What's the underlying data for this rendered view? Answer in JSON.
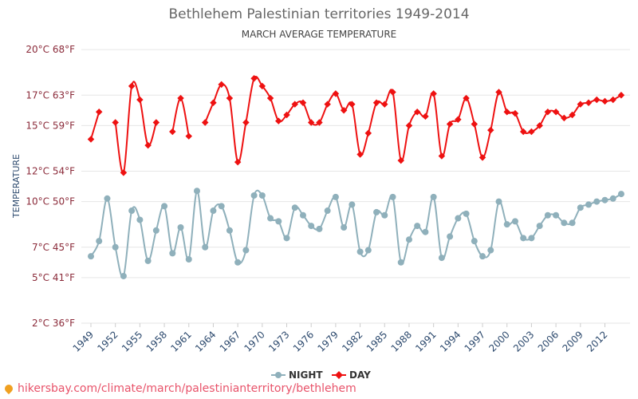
{
  "header": {
    "title": "Bethlehem Palestinian territories 1949-2014",
    "subtitle": "MARCH AVERAGE TEMPERATURE"
  },
  "footer": {
    "url": "hikersbay.com/climate/march/palestinianterritory/bethlehem"
  },
  "colors": {
    "night": "#8fb0bb",
    "day": "#ee1111",
    "grid": "#e6e6e6",
    "ytick": "#8b2b3a",
    "xtick": "#2d4a6e"
  },
  "chart_data": {
    "type": "line",
    "title": "Bethlehem Palestinian territories 1949-2014",
    "subtitle": "MARCH AVERAGE TEMPERATURE",
    "ylabel": "TEMPERATURE",
    "ylim": [
      2,
      20
    ],
    "xlim": [
      1949,
      2014
    ],
    "yticks": [
      {
        "value": 2,
        "label": "2°C 36°F"
      },
      {
        "value": 5,
        "label": "5°C 41°F"
      },
      {
        "value": 7,
        "label": "7°C 45°F"
      },
      {
        "value": 10,
        "label": "10°C 50°F"
      },
      {
        "value": 12,
        "label": "12°C 54°F"
      },
      {
        "value": 15,
        "label": "15°C 59°F"
      },
      {
        "value": 17,
        "label": "17°C 63°F"
      },
      {
        "value": 20,
        "label": "20°C 68°F"
      }
    ],
    "xticks": [
      1949,
      1952,
      1955,
      1958,
      1961,
      1964,
      1967,
      1970,
      1973,
      1976,
      1979,
      1982,
      1985,
      1988,
      1991,
      1994,
      1997,
      2000,
      2003,
      2006,
      2009,
      2012
    ],
    "legend_position": "bottom",
    "grid": true,
    "series": [
      {
        "name": "NIGHT",
        "x": [
          1949,
          1950,
          1951,
          1952,
          1953,
          1954,
          1955,
          1956,
          1957,
          1958,
          1959,
          1960,
          1961,
          1962,
          1963,
          1964,
          1965,
          1966,
          1967,
          1968,
          1969,
          1970,
          1971,
          1972,
          1973,
          1974,
          1975,
          1976,
          1977,
          1978,
          1979,
          1980,
          1981,
          1982,
          1983,
          1984,
          1985,
          1986,
          1987,
          1988,
          1989,
          1990,
          1991,
          1992,
          1993,
          1994,
          1995,
          1996,
          1997,
          1998,
          1999,
          2000,
          2001,
          2002,
          2003,
          2004,
          2005,
          2006,
          2007,
          2008,
          2009,
          2010,
          2011,
          2012,
          2013,
          2014
        ],
        "values": [
          6.4,
          7.4,
          10.2,
          7.0,
          5.1,
          9.4,
          8.8,
          6.1,
          8.1,
          9.7,
          6.6,
          8.3,
          6.2,
          10.7,
          7.0,
          9.4,
          9.7,
          8.1,
          6.0,
          6.8,
          10.4,
          10.4,
          8.9,
          8.7,
          7.6,
          9.6,
          9.1,
          8.4,
          8.2,
          9.4,
          10.3,
          8.3,
          9.8,
          6.7,
          6.8,
          9.3,
          9.1,
          10.3,
          6.0,
          7.5,
          8.4,
          8.0,
          10.3,
          6.3,
          7.7,
          8.9,
          9.2,
          7.4,
          6.4,
          6.8,
          10.0,
          8.5,
          8.7,
          7.6,
          7.6,
          8.4,
          9.1,
          9.1,
          8.6,
          8.6,
          9.6,
          9.8,
          10.0,
          10.1,
          10.2,
          10.5
        ]
      },
      {
        "name": "DAY",
        "x": [
          1949,
          1950,
          1952,
          1953,
          1954,
          1955,
          1956,
          1957,
          1959,
          1960,
          1961,
          1963,
          1964,
          1965,
          1966,
          1967,
          1968,
          1969,
          1970,
          1971,
          1972,
          1973,
          1974,
          1975,
          1976,
          1977,
          1978,
          1979,
          1980,
          1981,
          1982,
          1983,
          1984,
          1985,
          1986,
          1987,
          1988,
          1989,
          1990,
          1991,
          1992,
          1993,
          1994,
          1995,
          1996,
          1997,
          1998,
          1999,
          2000,
          2001,
          2002,
          2003,
          2004,
          2005,
          2006,
          2007,
          2008,
          2009,
          2010,
          2011,
          2012,
          2013,
          2014
        ],
        "values": [
          14.1,
          15.9,
          15.2,
          11.9,
          17.6,
          16.7,
          13.7,
          15.2,
          14.6,
          16.8,
          14.3,
          15.2,
          16.5,
          17.7,
          16.8,
          12.6,
          15.2,
          18.1,
          17.6,
          16.8,
          15.3,
          15.7,
          16.4,
          16.5,
          15.2,
          15.2,
          16.4,
          17.1,
          16.0,
          16.4,
          13.1,
          14.5,
          16.5,
          16.4,
          17.2,
          12.7,
          15.0,
          15.9,
          15.6,
          17.1,
          13.0,
          15.1,
          15.4,
          16.8,
          15.1,
          12.9,
          14.7,
          17.2,
          15.9,
          15.8,
          14.6,
          14.6,
          15.0,
          15.9,
          15.9,
          15.5,
          15.7,
          16.4,
          16.5,
          16.7,
          16.6,
          16.7,
          17.0
        ]
      }
    ]
  }
}
